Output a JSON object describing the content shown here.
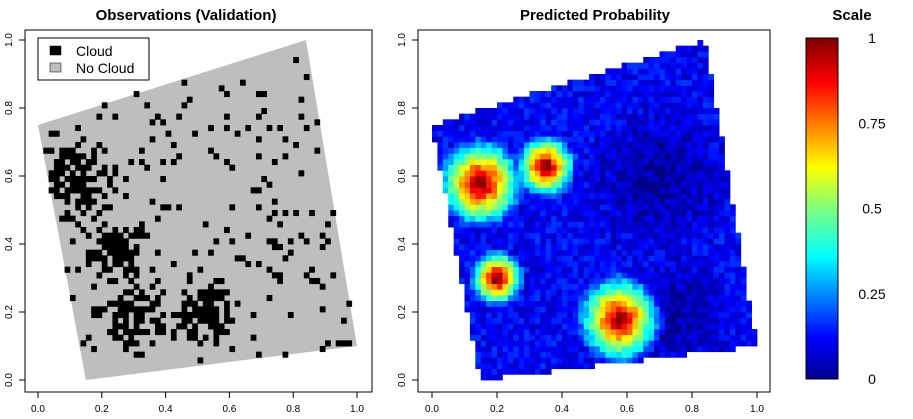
{
  "chart_data": [
    {
      "type": "heatmap",
      "title": "Observations (Validation)",
      "xlim": [
        0,
        1
      ],
      "ylim": [
        0,
        1
      ],
      "x_ticks": [
        "0.0",
        "0.2",
        "0.4",
        "0.6",
        "0.8",
        "1.0"
      ],
      "y_ticks": [
        "0.0",
        "0.2",
        "0.4",
        "0.6",
        "0.8",
        "1.0"
      ],
      "legend": {
        "placement": "top-left",
        "entries": [
          {
            "label": "Cloud",
            "color": "#000000"
          },
          {
            "label": "No Cloud",
            "color": "#bebebe"
          }
        ]
      },
      "swath_corners": [
        [
          0.0,
          0.75
        ],
        [
          0.84,
          1.0
        ],
        [
          1.0,
          0.1
        ],
        [
          0.15,
          0.0
        ]
      ],
      "classes": {
        "cloud": "#000000",
        "no_cloud": "#bebebe"
      },
      "cloud_dense_regions": [
        {
          "x": 0.1,
          "y": 0.58,
          "r": 0.16
        },
        {
          "x": 0.52,
          "y": 0.2,
          "r": 0.13
        },
        {
          "x": 0.3,
          "y": 0.2,
          "r": 0.12
        },
        {
          "x": 0.25,
          "y": 0.38,
          "r": 0.13
        }
      ]
    },
    {
      "type": "heatmap",
      "title": "Predicted Probability",
      "xlim": [
        0,
        1
      ],
      "ylim": [
        0,
        1
      ],
      "x_ticks": [
        "0.0",
        "0.2",
        "0.4",
        "0.6",
        "0.8",
        "1.0"
      ],
      "y_ticks": [
        "0.0",
        "0.2",
        "0.4",
        "0.6",
        "0.8",
        "1.0"
      ],
      "value_range": [
        0,
        1
      ],
      "high_probability_regions": [
        {
          "x": 0.15,
          "y": 0.58,
          "r": 0.14
        },
        {
          "x": 0.58,
          "y": 0.18,
          "r": 0.14
        },
        {
          "x": 0.35,
          "y": 0.63,
          "r": 0.1
        },
        {
          "x": 0.2,
          "y": 0.3,
          "r": 0.09
        }
      ],
      "low_probability_regions": [
        {
          "x": 0.7,
          "y": 0.6,
          "r": 0.25
        },
        {
          "x": 0.75,
          "y": 0.2,
          "r": 0.2
        }
      ]
    }
  ],
  "scale": {
    "title": "Scale",
    "tick_labels": [
      "0",
      "0.25",
      "0.5",
      "0.75",
      "1"
    ],
    "tick_values": [
      0,
      0.25,
      0.5,
      0.75,
      1
    ],
    "colormap": "jet"
  }
}
